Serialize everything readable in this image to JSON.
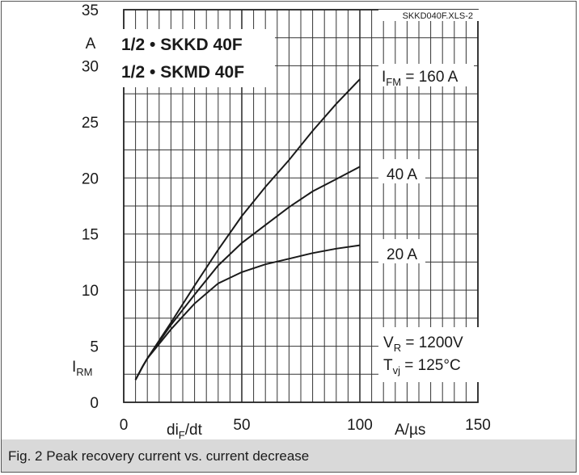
{
  "caption": "Fig. 2 Peak recovery current vs. current decrease",
  "chart_data": {
    "type": "line",
    "code_label": "SKKD040F.XLS-2",
    "title_lines": [
      "1/2 • SKKD 40F",
      "1/2 • SKMD 40F"
    ],
    "xlim": [
      0,
      150
    ],
    "ylim": [
      0,
      35
    ],
    "x_ticks": [
      0,
      50,
      100,
      150
    ],
    "y_ticks": [
      0,
      5,
      10,
      15,
      20,
      25,
      30,
      35
    ],
    "grid": true,
    "xlabel": {
      "symbol": "di",
      "sub": "F",
      "rest": "/dt"
    },
    "xunit": "A/µs",
    "ylabel": {
      "symbol": "I",
      "sub": "RM"
    },
    "yunit": "A",
    "conditions": [
      {
        "symbol": "V",
        "sub": "R",
        "rest": " = 1200V"
      },
      {
        "symbol": "T",
        "sub": "vj",
        "rest": " = 125°C"
      }
    ],
    "series": [
      {
        "name": "I_FM = 160 A",
        "label": {
          "symbol": "I",
          "sub": "FM",
          "rest": " = 160 A"
        },
        "x": [
          5,
          8,
          10,
          15,
          20,
          30,
          40,
          50,
          60,
          70,
          80,
          90,
          100
        ],
        "y": [
          2,
          3.2,
          3.9,
          5.5,
          7.1,
          10.4,
          13.6,
          16.6,
          19.2,
          21.6,
          24.2,
          26.6,
          28.8
        ]
      },
      {
        "name": "40 A",
        "label": {
          "symbol": "40 A",
          "sub": "",
          "rest": ""
        },
        "x": [
          5,
          8,
          10,
          15,
          20,
          30,
          40,
          50,
          60,
          70,
          80,
          90,
          100
        ],
        "y": [
          2,
          3.2,
          3.9,
          5.4,
          6.9,
          9.6,
          12.2,
          14.2,
          15.8,
          17.4,
          18.8,
          19.9,
          21
        ]
      },
      {
        "name": "20 A",
        "label": {
          "symbol": "20 A",
          "sub": "",
          "rest": ""
        },
        "x": [
          5,
          8,
          10,
          15,
          20,
          30,
          40,
          50,
          60,
          70,
          80,
          90,
          100
        ],
        "y": [
          2,
          3.2,
          3.9,
          5.2,
          6.5,
          8.8,
          10.6,
          11.6,
          12.3,
          12.8,
          13.3,
          13.7,
          14
        ]
      }
    ]
  }
}
